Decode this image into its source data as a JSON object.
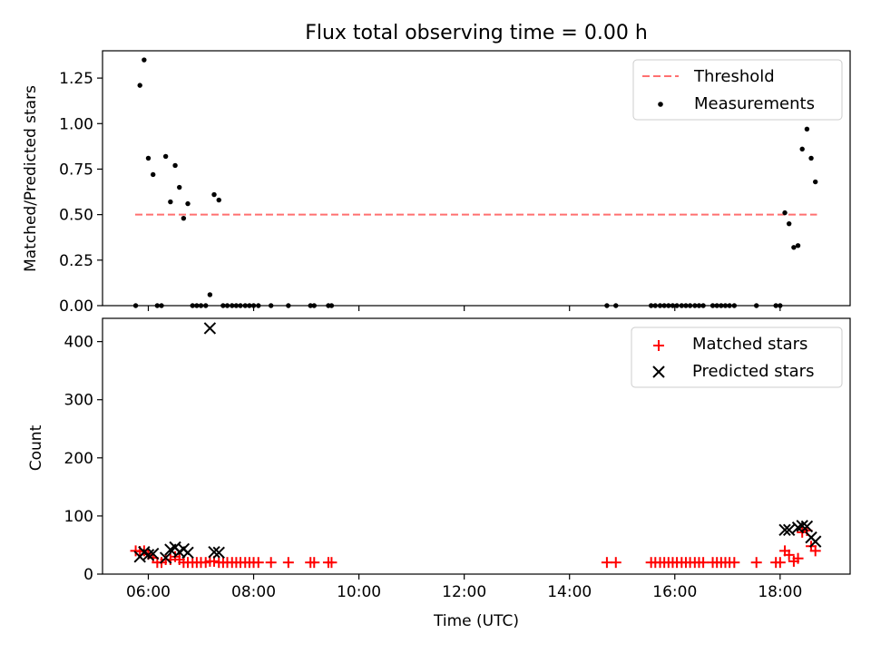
{
  "chart_data": [
    {
      "type": "scatter",
      "title": "Flux total observing time = 0.00 h",
      "xlabel": "",
      "ylabel": "Matched/Predicted stars",
      "xlim": [
        5.13,
        19.33
      ],
      "ylim": [
        0,
        1.4
      ],
      "grid": false,
      "legend_position": "top-right",
      "x_ticks": [
        {
          "value": 6,
          "label": "06:00"
        },
        {
          "value": 8,
          "label": "08:00"
        },
        {
          "value": 10,
          "label": "10:00"
        },
        {
          "value": 12,
          "label": "12:00"
        },
        {
          "value": 14,
          "label": "14:00"
        },
        {
          "value": 16,
          "label": "16:00"
        },
        {
          "value": 18,
          "label": "18:00"
        }
      ],
      "x_tick_labels_visible": false,
      "y_ticks": [
        {
          "value": 0.0,
          "label": "0.00"
        },
        {
          "value": 0.25,
          "label": "0.25"
        },
        {
          "value": 0.5,
          "label": "0.50"
        },
        {
          "value": 0.75,
          "label": "0.75"
        },
        {
          "value": 1.0,
          "label": "1.00"
        },
        {
          "value": 1.25,
          "label": "1.25"
        }
      ],
      "threshold": {
        "name": "Threshold",
        "value": 0.5,
        "x_range": [
          5.75,
          18.7
        ],
        "color": "#ff7070"
      },
      "series": [
        {
          "name": "Measurements",
          "color": "#000000",
          "marker": "dot",
          "x": [
            5.76,
            5.84,
            5.92,
            6.0,
            6.09,
            6.17,
            6.25,
            6.33,
            6.42,
            6.51,
            6.59,
            6.67,
            6.75,
            6.84,
            6.92,
            7.0,
            7.09,
            7.17,
            7.25,
            7.34,
            7.42,
            7.5,
            7.59,
            7.67,
            7.75,
            7.84,
            7.92,
            8.0,
            8.09,
            8.33,
            8.66,
            9.08,
            9.15,
            9.42,
            9.48,
            14.71,
            14.88,
            15.55,
            15.63,
            15.72,
            15.8,
            15.88,
            15.96,
            16.04,
            16.13,
            16.21,
            16.29,
            16.38,
            16.46,
            16.54,
            16.72,
            16.8,
            16.88,
            16.96,
            17.04,
            17.13,
            17.55,
            17.92,
            18.0,
            18.09,
            18.17,
            18.26,
            18.34,
            18.42,
            18.51,
            18.59,
            18.67
          ],
          "y": [
            0.0,
            1.21,
            1.35,
            0.81,
            0.72,
            0.0,
            0.0,
            0.82,
            0.57,
            0.77,
            0.65,
            0.48,
            0.56,
            0.0,
            0.0,
            0.0,
            0.0,
            0.06,
            0.61,
            0.58,
            0.0,
            0.0,
            0.0,
            0.0,
            0.0,
            0.0,
            0.0,
            0.0,
            0.0,
            0.0,
            0.0,
            0.0,
            0.0,
            0.0,
            0.0,
            0.0,
            0.0,
            0.0,
            0.0,
            0.0,
            0.0,
            0.0,
            0.0,
            0.0,
            0.0,
            0.0,
            0.0,
            0.0,
            0.0,
            0.0,
            0.0,
            0.0,
            0.0,
            0.0,
            0.0,
            0.0,
            0.0,
            0.0,
            0.0,
            0.51,
            0.45,
            0.32,
            0.33,
            0.86,
            0.97,
            0.81,
            0.68
          ]
        }
      ]
    },
    {
      "type": "scatter",
      "title": "",
      "xlabel": "Time (UTC)",
      "ylabel": "Count",
      "xlim": [
        5.13,
        19.33
      ],
      "ylim": [
        0,
        440
      ],
      "grid": false,
      "legend_position": "top-right",
      "x_ticks": [
        {
          "value": 6,
          "label": "06:00"
        },
        {
          "value": 8,
          "label": "08:00"
        },
        {
          "value": 10,
          "label": "10:00"
        },
        {
          "value": 12,
          "label": "12:00"
        },
        {
          "value": 14,
          "label": "14:00"
        },
        {
          "value": 16,
          "label": "16:00"
        },
        {
          "value": 18,
          "label": "18:00"
        }
      ],
      "x_tick_labels_visible": true,
      "y_ticks": [
        {
          "value": 0,
          "label": "0"
        },
        {
          "value": 100,
          "label": "100"
        },
        {
          "value": 200,
          "label": "200"
        },
        {
          "value": 300,
          "label": "300"
        },
        {
          "value": 400,
          "label": "400"
        }
      ],
      "series": [
        {
          "name": "Matched stars",
          "color": "#ff0000",
          "marker": "plus",
          "x": [
            5.76,
            5.84,
            5.92,
            6.0,
            6.09,
            6.17,
            6.25,
            6.33,
            6.42,
            6.51,
            6.59,
            6.67,
            6.75,
            6.84,
            6.92,
            7.0,
            7.09,
            7.17,
            7.25,
            7.34,
            7.42,
            7.5,
            7.59,
            7.67,
            7.75,
            7.84,
            7.92,
            8.0,
            8.09,
            8.33,
            8.66,
            9.08,
            9.15,
            9.42,
            9.48,
            14.71,
            14.88,
            15.55,
            15.63,
            15.72,
            15.8,
            15.88,
            15.96,
            16.04,
            16.13,
            16.21,
            16.29,
            16.38,
            16.46,
            16.54,
            16.72,
            16.8,
            16.88,
            16.96,
            17.04,
            17.13,
            17.55,
            17.92,
            18.0,
            18.09,
            18.17,
            18.26,
            18.34,
            18.42,
            18.51,
            18.59,
            18.67
          ],
          "y": [
            40,
            39,
            40,
            34,
            28,
            20,
            20,
            25,
            25,
            30,
            25,
            20,
            20,
            20,
            20,
            20,
            20,
            22,
            22,
            20,
            20,
            20,
            20,
            20,
            20,
            20,
            20,
            20,
            20,
            20,
            20,
            20,
            20,
            20,
            20,
            20,
            20,
            20,
            20,
            20,
            20,
            20,
            20,
            20,
            20,
            20,
            20,
            20,
            20,
            20,
            20,
            20,
            20,
            20,
            20,
            20,
            20,
            20,
            20,
            40,
            33,
            22,
            27,
            72,
            75,
            48,
            40
          ]
        },
        {
          "name": "Predicted stars",
          "color": "#000000",
          "marker": "x",
          "x": [
            5.84,
            5.92,
            6.0,
            6.09,
            6.33,
            6.42,
            6.51,
            6.59,
            6.67,
            6.75,
            7.17,
            7.25,
            7.34,
            18.09,
            18.17,
            18.34,
            18.42,
            18.51,
            18.59,
            18.67
          ],
          "y": [
            30,
            38,
            33,
            35,
            28,
            42,
            46,
            38,
            43,
            37,
            423,
            38,
            37,
            76,
            76,
            80,
            83,
            82,
            63,
            56
          ]
        }
      ]
    }
  ]
}
